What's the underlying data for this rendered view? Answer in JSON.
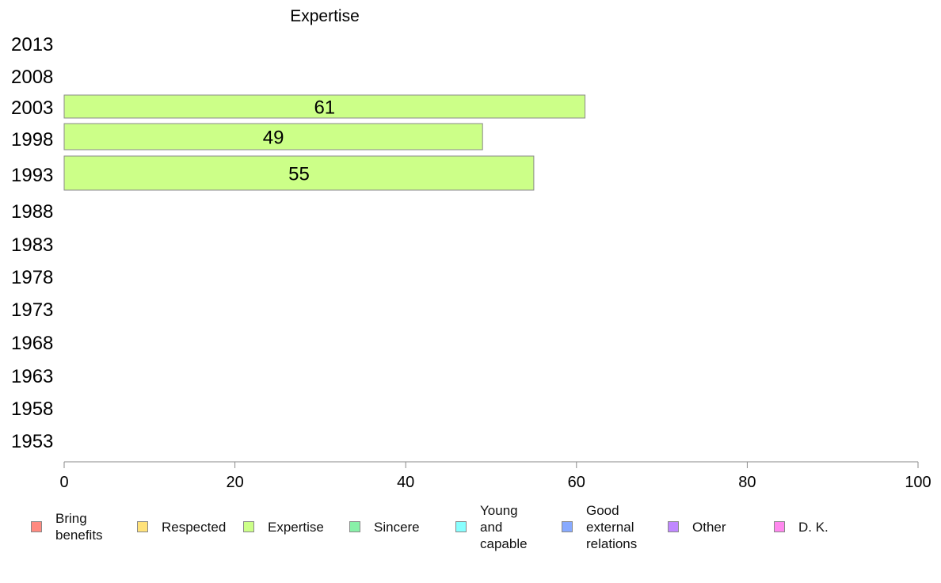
{
  "chart_data": {
    "type": "bar",
    "orientation": "horizontal",
    "title": "Expertise",
    "categories": [
      "2013",
      "2008",
      "2003",
      "1998",
      "1993",
      "1988",
      "1983",
      "1978",
      "1973",
      "1968",
      "1963",
      "1958",
      "1953"
    ],
    "series": [
      {
        "name": "Expertise",
        "color": "#ccff88",
        "values": [
          null,
          null,
          61,
          49,
          55,
          null,
          null,
          null,
          null,
          null,
          null,
          null,
          null
        ]
      }
    ],
    "xlim": [
      0,
      100
    ],
    "xticks": [
      "0",
      "20",
      "40",
      "60",
      "80",
      "100"
    ],
    "grid": false,
    "legend_position": "bottom"
  },
  "legend": [
    {
      "label": "Bring benefits",
      "color": "#ff8a80"
    },
    {
      "label": "Respected",
      "color": "#ffe27a"
    },
    {
      "label": "Expertise",
      "color": "#ccff88"
    },
    {
      "label": "Sincere",
      "color": "#88f0a8"
    },
    {
      "label": "Young and capable",
      "color": "#88ffff"
    },
    {
      "label": "Good external relations",
      "color": "#88aaff"
    },
    {
      "label": "Other",
      "color": "#c088ff"
    },
    {
      "label": "D. K.",
      "color": "#ff88ee"
    }
  ]
}
